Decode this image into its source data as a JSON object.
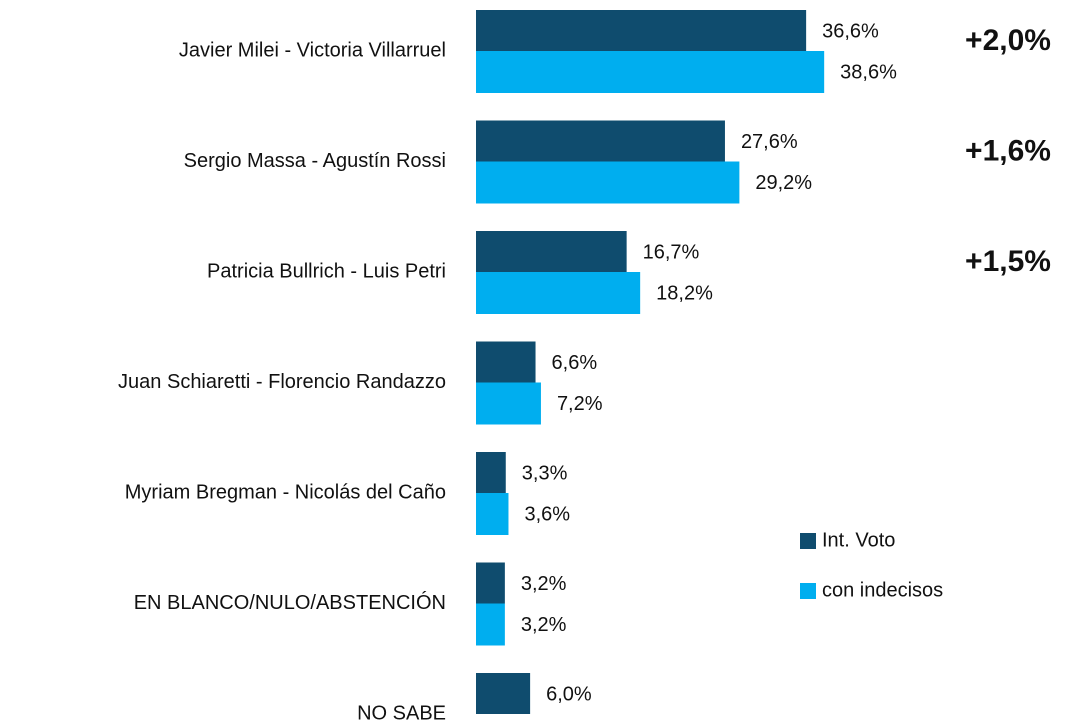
{
  "chart_data": {
    "type": "bar",
    "orientation": "horizontal",
    "categories": [
      "Javier Milei - Victoria Villarruel",
      "Sergio Massa - Agustín Rossi",
      "Patricia Bullrich - Luis Petri",
      "Juan Schiaretti - Florencio Randazzo",
      "Myriam Bregman - Nicolás del Caño",
      "EN BLANCO/NULO/ABSTENCIÓN",
      "NO SABE"
    ],
    "series": [
      {
        "name": "Int. Voto",
        "color": "#0f4c6e",
        "values": [
          36.6,
          27.6,
          16.7,
          6.6,
          3.3,
          3.2,
          6.0
        ],
        "value_labels": [
          "36,6%",
          "27,6%",
          "16,7%",
          "6,6%",
          "3,3%",
          "3,2%",
          "6,0%"
        ]
      },
      {
        "name": "con indecisos",
        "color": "#00aeef",
        "values": [
          38.6,
          29.2,
          18.2,
          7.2,
          3.6,
          3.2,
          null
        ],
        "value_labels": [
          "38,6%",
          "29,2%",
          "18,2%",
          "7,2%",
          "3,6%",
          "3,2%",
          null
        ]
      }
    ],
    "annotations": [
      "+2,0%",
      "+1,6%",
      "+1,5%"
    ],
    "legend": "right"
  }
}
